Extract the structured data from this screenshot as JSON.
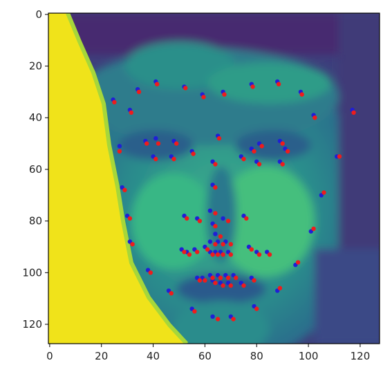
{
  "chart_data": {
    "type": "scatter",
    "title": "",
    "xlabel": "",
    "ylabel": "",
    "xlim": [
      -0.5,
      127.5
    ],
    "ylim": [
      127.5,
      -0.5
    ],
    "y_inverted": true,
    "x_ticks": [
      0,
      20,
      40,
      60,
      80,
      100,
      120
    ],
    "y_ticks": [
      0,
      20,
      40,
      60,
      80,
      100,
      120
    ],
    "x_tick_labels": [
      "0",
      "20",
      "40",
      "60",
      "80",
      "100",
      "120"
    ],
    "y_tick_labels": [
      "0",
      "20",
      "40",
      "60",
      "80",
      "100",
      "120"
    ],
    "grid": false,
    "legend": "none",
    "background": {
      "kind": "grayscale face image rendered with viridis colormap",
      "colors": {
        "bright": "#f0e31a",
        "mid": "#2a9d8a",
        "dark": "#45296e"
      }
    },
    "series": [
      {
        "color": "#1f1fd6",
        "points": [
          [
            24.5,
            33
          ],
          [
            31,
            37
          ],
          [
            34,
            29
          ],
          [
            41,
            26
          ],
          [
            52,
            28
          ],
          [
            59,
            31
          ],
          [
            67,
            30
          ],
          [
            78,
            27
          ],
          [
            88,
            26
          ],
          [
            97,
            30
          ],
          [
            102,
            39
          ],
          [
            117,
            37
          ],
          [
            27,
            51
          ],
          [
            37,
            49
          ],
          [
            41,
            48
          ],
          [
            48,
            49
          ],
          [
            55,
            53
          ],
          [
            40,
            55
          ],
          [
            47,
            55
          ],
          [
            65,
            47
          ],
          [
            63,
            57
          ],
          [
            74,
            55
          ],
          [
            78,
            52
          ],
          [
            81,
            50
          ],
          [
            89,
            49
          ],
          [
            91,
            52
          ],
          [
            80,
            57
          ],
          [
            89,
            57
          ],
          [
            28,
            67
          ],
          [
            30,
            78
          ],
          [
            31,
            88
          ],
          [
            38,
            99
          ],
          [
            46,
            107
          ],
          [
            55,
            114
          ],
          [
            63,
            117
          ],
          [
            70,
            117
          ],
          [
            79,
            113
          ],
          [
            88,
            107
          ],
          [
            95,
            97
          ],
          [
            101,
            84
          ],
          [
            105,
            70
          ],
          [
            111,
            55
          ],
          [
            63,
            66
          ],
          [
            62,
            76
          ],
          [
            52,
            78
          ],
          [
            57,
            79
          ],
          [
            63,
            81
          ],
          [
            67,
            79
          ],
          [
            75,
            78
          ],
          [
            64,
            85
          ],
          [
            56,
            91
          ],
          [
            51,
            91
          ],
          [
            60,
            90
          ],
          [
            62,
            88
          ],
          [
            65,
            88
          ],
          [
            68,
            88
          ],
          [
            64,
            92
          ],
          [
            66,
            92
          ],
          [
            69,
            92
          ],
          [
            77,
            90
          ],
          [
            53,
            92
          ],
          [
            62,
            92
          ],
          [
            80,
            92
          ],
          [
            84,
            92
          ],
          [
            57,
            102
          ],
          [
            59,
            102
          ],
          [
            62,
            101
          ],
          [
            65,
            101
          ],
          [
            68,
            101
          ],
          [
            71,
            101
          ],
          [
            63,
            103
          ],
          [
            66,
            104
          ],
          [
            69,
            104
          ],
          [
            74,
            104
          ],
          [
            78,
            102
          ]
        ]
      },
      {
        "color": "#ee1c1c",
        "points": [
          [
            25,
            34
          ],
          [
            31.5,
            38
          ],
          [
            34.5,
            30
          ],
          [
            41.5,
            27
          ],
          [
            52.5,
            28.5
          ],
          [
            59.5,
            32
          ],
          [
            67.5,
            31
          ],
          [
            78.5,
            28
          ],
          [
            88.5,
            27
          ],
          [
            97.5,
            31
          ],
          [
            102.5,
            40
          ],
          [
            117.5,
            38
          ],
          [
            27,
            53
          ],
          [
            37.5,
            50
          ],
          [
            42,
            50
          ],
          [
            49,
            50
          ],
          [
            55.5,
            54
          ],
          [
            41,
            56
          ],
          [
            48,
            56
          ],
          [
            65.5,
            48
          ],
          [
            64,
            58
          ],
          [
            75,
            56
          ],
          [
            79,
            53
          ],
          [
            82,
            51
          ],
          [
            90,
            50
          ],
          [
            92,
            53
          ],
          [
            81,
            58
          ],
          [
            90,
            58
          ],
          [
            29,
            68
          ],
          [
            31,
            79
          ],
          [
            32,
            89
          ],
          [
            39,
            100
          ],
          [
            47,
            108
          ],
          [
            56,
            115
          ],
          [
            65,
            118
          ],
          [
            71,
            118
          ],
          [
            80,
            114
          ],
          [
            89,
            106
          ],
          [
            96,
            96
          ],
          [
            102,
            83
          ],
          [
            106,
            69
          ],
          [
            112,
            55
          ],
          [
            64,
            67
          ],
          [
            64,
            77
          ],
          [
            53,
            79
          ],
          [
            58,
            80
          ],
          [
            64,
            82
          ],
          [
            69,
            80
          ],
          [
            76,
            79
          ],
          [
            66,
            86
          ],
          [
            57,
            92
          ],
          [
            52,
            92
          ],
          [
            61,
            91
          ],
          [
            64,
            89
          ],
          [
            67,
            89
          ],
          [
            70,
            89
          ],
          [
            65,
            93
          ],
          [
            67,
            93
          ],
          [
            70,
            93
          ],
          [
            78,
            91
          ],
          [
            54,
            93
          ],
          [
            63,
            93
          ],
          [
            81,
            93
          ],
          [
            85,
            93
          ],
          [
            58,
            103
          ],
          [
            60,
            103
          ],
          [
            63,
            102
          ],
          [
            66,
            102
          ],
          [
            69,
            102
          ],
          [
            72,
            102
          ],
          [
            64,
            104
          ],
          [
            67,
            105
          ],
          [
            70,
            105
          ],
          [
            75,
            105
          ],
          [
            79,
            103
          ]
        ]
      }
    ]
  }
}
